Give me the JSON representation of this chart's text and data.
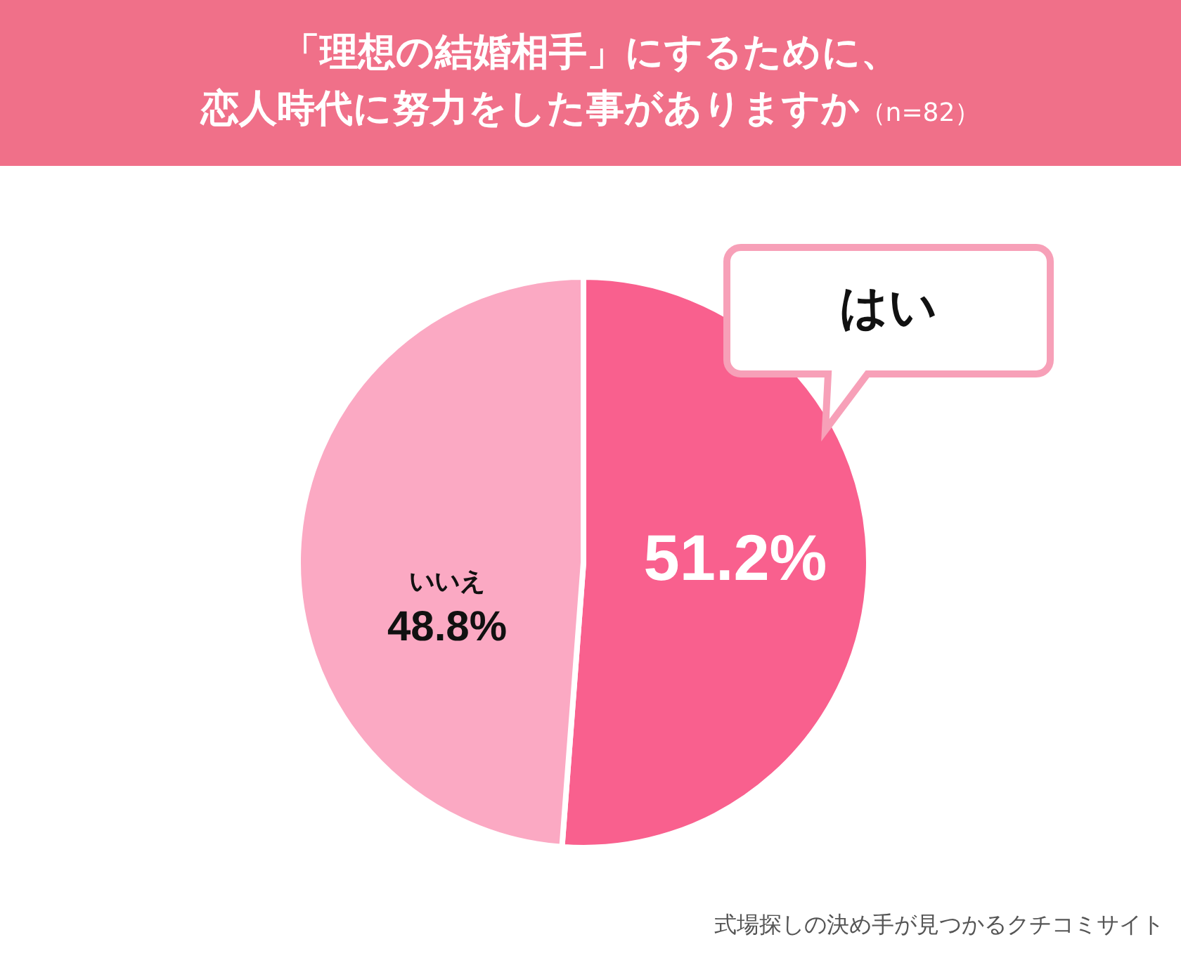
{
  "chart_data": {
    "type": "pie",
    "title": "「理想の結婚相手」にするために、",
    "subtitle": "恋人時代に努力をした事がありますか",
    "categories": [
      "はい",
      "いいえ"
    ],
    "values": [
      51.2,
      48.8
    ],
    "value_labels": [
      "51.2%",
      "48.8%"
    ],
    "colors": [
      "#f9608e",
      "#fba9c3"
    ],
    "annotations": [
      "（n=82）",
      "式場探しの決め手が見つかるクチコミサイト"
    ]
  }
}
